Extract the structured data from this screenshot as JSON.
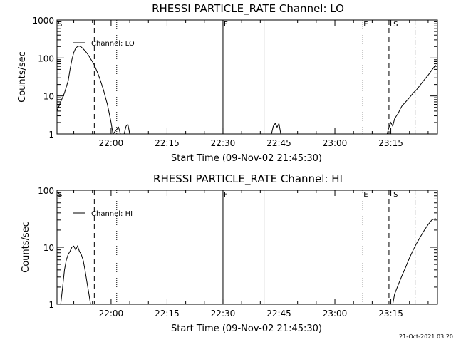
{
  "figure": {
    "timestamp": "21-Oct-2021 03:20"
  },
  "panels": [
    {
      "title": "RHESSI PARTICLE_RATE Channel: LO",
      "xlabel": "Start Time (09-Nov-02 21:45:30)",
      "ylabel": "Counts/sec",
      "legend": "Channel: LO",
      "flags": [
        {
          "label": "S",
          "time": "21:45:30"
        },
        {
          "label": "F",
          "time": "22:30:00"
        },
        {
          "label": "E",
          "time": "23:07:30"
        },
        {
          "label": "S",
          "time": "23:15:30"
        }
      ]
    },
    {
      "title": "RHESSI PARTICLE_RATE Channel: HI",
      "xlabel": "Start Time (09-Nov-02 21:45:30)",
      "ylabel": "Counts/sec",
      "legend": "Channel: HI",
      "flags": [
        {
          "label": "S",
          "time": "21:45:30"
        },
        {
          "label": "F",
          "time": "22:30:00"
        },
        {
          "label": "E",
          "time": "23:07:30"
        },
        {
          "label": "S",
          "time": "23:15:30"
        }
      ]
    }
  ],
  "chart_data": [
    {
      "type": "line",
      "title": "RHESSI PARTICLE_RATE Channel: LO",
      "xlabel": "Start Time (09-Nov-02 21:45:30)",
      "ylabel": "Counts/sec",
      "yscale": "log",
      "ylim": [
        1,
        1000
      ],
      "xlim": [
        "21:45:30",
        "23:27:30"
      ],
      "xticks": [
        "22:00",
        "22:15",
        "22:30",
        "22:45",
        "23:00",
        "23:15"
      ],
      "yticks": [
        "1",
        "10",
        "100",
        "1000"
      ],
      "legend_position": "top-left",
      "series": [
        {
          "name": "Channel: LO",
          "x": [
            "21:45:30",
            "21:46:30",
            "21:47:30",
            "21:48:30",
            "21:49:00",
            "21:49:30",
            "21:50:00",
            "21:50:30",
            "21:51:00",
            "21:51:30",
            "21:52:00",
            "21:52:30",
            "21:53:00",
            "21:53:30",
            "21:54:00",
            "21:54:30",
            "21:55:00",
            "21:55:30",
            "21:56:00",
            "21:56:30",
            "21:57:00",
            "21:57:30",
            "21:58:00",
            "21:58:30",
            "21:59:00",
            "21:59:30",
            "22:00:00",
            "22:00:30",
            "22:02:00",
            "22:02:30",
            "22:03:30",
            "22:04:00",
            "22:04:30",
            "22:05:00",
            "22:43:00",
            "22:43:30",
            "22:44:00",
            "22:44:30",
            "22:45:00",
            "22:45:30",
            "23:14:00",
            "23:14:30",
            "23:15:00",
            "23:15:30",
            "23:16:00",
            "23:16:30",
            "23:17:00",
            "23:17:30",
            "23:18:00",
            "23:19:00",
            "23:20:00",
            "23:21:00",
            "23:22:00",
            "23:23:00",
            "23:24:00",
            "23:25:00",
            "23:26:00",
            "23:27:00"
          ],
          "y": [
            4,
            7,
            12,
            25,
            50,
            90,
            140,
            180,
            200,
            205,
            195,
            175,
            155,
            135,
            115,
            95,
            80,
            65,
            50,
            38,
            28,
            20,
            14,
            9,
            6,
            3.5,
            2,
            1,
            1.5,
            1,
            1,
            1.6,
            1.8,
            1,
            1,
            1.6,
            1.9,
            1.5,
            1.9,
            1,
            1,
            1.5,
            2,
            1.6,
            2.5,
            3,
            3.5,
            4.5,
            5.5,
            7,
            9,
            12,
            15,
            20,
            27,
            35,
            48,
            65
          ]
        }
      ]
    },
    {
      "type": "line",
      "title": "RHESSI PARTICLE_RATE Channel: HI",
      "xlabel": "Start Time (09-Nov-02 21:45:30)",
      "ylabel": "Counts/sec",
      "yscale": "log",
      "ylim": [
        1,
        100
      ],
      "xlim": [
        "21:45:30",
        "23:27:30"
      ],
      "xticks": [
        "22:00",
        "22:15",
        "22:30",
        "22:45",
        "23:00",
        "23:15"
      ],
      "yticks": [
        "1",
        "10",
        "100"
      ],
      "legend_position": "top-left",
      "series": [
        {
          "name": "Channel: HI",
          "x": [
            "21:46:30",
            "21:47:00",
            "21:47:30",
            "21:48:00",
            "21:48:30",
            "21:49:00",
            "21:49:30",
            "21:50:00",
            "21:50:30",
            "21:51:00",
            "21:51:30",
            "21:52:00",
            "21:52:30",
            "21:53:00",
            "21:53:30",
            "21:54:00",
            "21:54:30",
            "23:15:30",
            "23:16:00",
            "23:17:00",
            "23:18:00",
            "23:19:00",
            "23:20:00",
            "23:21:00",
            "23:22:00",
            "23:23:00",
            "23:24:00",
            "23:25:00",
            "23:26:00",
            "23:27:00"
          ],
          "y": [
            1,
            2,
            4,
            6,
            7.5,
            8.5,
            10,
            10.5,
            9,
            10.5,
            8.5,
            7.5,
            6,
            4,
            2.5,
            1.6,
            1,
            1,
            1.5,
            2.2,
            3.2,
            4.5,
            6.5,
            9,
            12,
            15.5,
            20,
            25,
            30,
            32
          ]
        }
      ]
    }
  ]
}
